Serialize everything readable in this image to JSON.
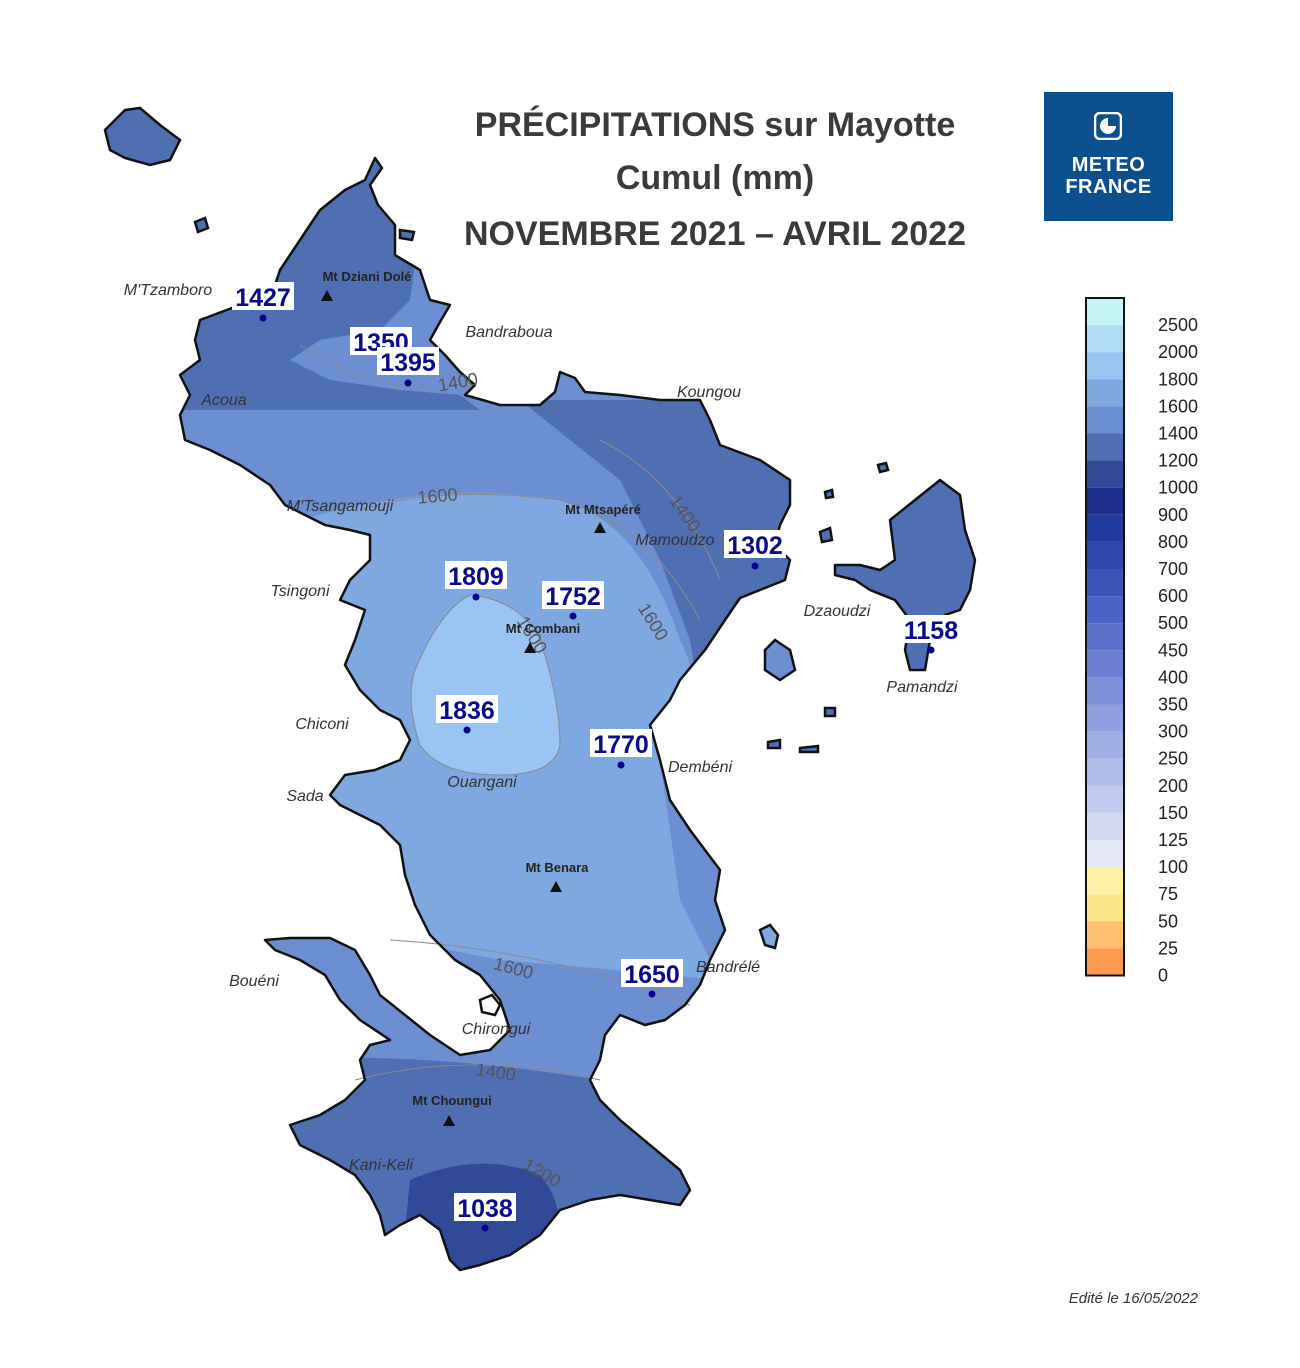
{
  "title": {
    "line1": "PRÉCIPITATIONS sur Mayotte",
    "line2": "Cumul (mm)",
    "line3": "NOVEMBRE 2021 – AVRIL 2022"
  },
  "logo": {
    "line1": "METEO",
    "line2": "FRANCE"
  },
  "edited": "Edité le 16/05/2022",
  "legend": {
    "title": "",
    "classes": [
      {
        "label": "2500",
        "color": "#c5f3f6"
      },
      {
        "label": "2000",
        "color": "#b2dcf5"
      },
      {
        "label": "1800",
        "color": "#98c5f2"
      },
      {
        "label": "1600",
        "color": "#7ea9e0"
      },
      {
        "label": "1400",
        "color": "#6b8fd0"
      },
      {
        "label": "1200",
        "color": "#4f6fb3"
      },
      {
        "label": "1000",
        "color": "#304a98"
      },
      {
        "label": "900",
        "color": "#1c2f8f"
      },
      {
        "label": "800",
        "color": "#213aa0"
      },
      {
        "label": "700",
        "color": "#2d47ac"
      },
      {
        "label": "600",
        "color": "#3b55b7"
      },
      {
        "label": "500",
        "color": "#4a62c1"
      },
      {
        "label": "450",
        "color": "#5a70c9"
      },
      {
        "label": "400",
        "color": "#6b7fd1"
      },
      {
        "label": "350",
        "color": "#7d8fd9"
      },
      {
        "label": "300",
        "color": "#8e9fe0"
      },
      {
        "label": "250",
        "color": "#a0aee6"
      },
      {
        "label": "200",
        "color": "#b0bceb"
      },
      {
        "label": "150",
        "color": "#c2caef"
      },
      {
        "label": "125",
        "color": "#d3d9f3"
      },
      {
        "label": "100",
        "color": "#e5e8f7"
      },
      {
        "label": "75",
        "color": "#fff2a6"
      },
      {
        "label": "50",
        "color": "#fde58c"
      },
      {
        "label": "25",
        "color": "#fcc070"
      },
      {
        "label": "0",
        "color": "#fc9a50"
      }
    ]
  },
  "stations": [
    {
      "value": "1427"
    },
    {
      "value": "1350"
    },
    {
      "value": "1395"
    },
    {
      "value": "1302"
    },
    {
      "value": "1809"
    },
    {
      "value": "1752"
    },
    {
      "value": "1158"
    },
    {
      "value": "1836"
    },
    {
      "value": "1770"
    },
    {
      "value": "1650"
    },
    {
      "value": "1038"
    }
  ],
  "places": [
    {
      "name": "M'Tzamboro"
    },
    {
      "name": "Bandraboua"
    },
    {
      "name": "Acoua"
    },
    {
      "name": "Koungou"
    },
    {
      "name": "M'Tsangamouji"
    },
    {
      "name": "Mamoudzo"
    },
    {
      "name": "Tsingoni"
    },
    {
      "name": "Dzaoudzi"
    },
    {
      "name": "Pamandzi"
    },
    {
      "name": "Chiconi"
    },
    {
      "name": "Ouangani"
    },
    {
      "name": "Dembéni"
    },
    {
      "name": "Sada"
    },
    {
      "name": "Bandrélé"
    },
    {
      "name": "Bouéni"
    },
    {
      "name": "Chirongui"
    },
    {
      "name": "Kani-Keli"
    }
  ],
  "summits": [
    {
      "name": "Mt Dziani Dolé"
    },
    {
      "name": "Mt Mtsapéré"
    },
    {
      "name": "Mt Combani"
    },
    {
      "name": "Mt Benara"
    },
    {
      "name": "Mt Choungui"
    }
  ],
  "contours": [
    "1600",
    "1400",
    "1600",
    "1800",
    "1400",
    "1200",
    "1400",
    "1600"
  ],
  "colors": {
    "coast": "#111111",
    "station_dot": "#00008b",
    "value_text": "#0a0a8a"
  }
}
